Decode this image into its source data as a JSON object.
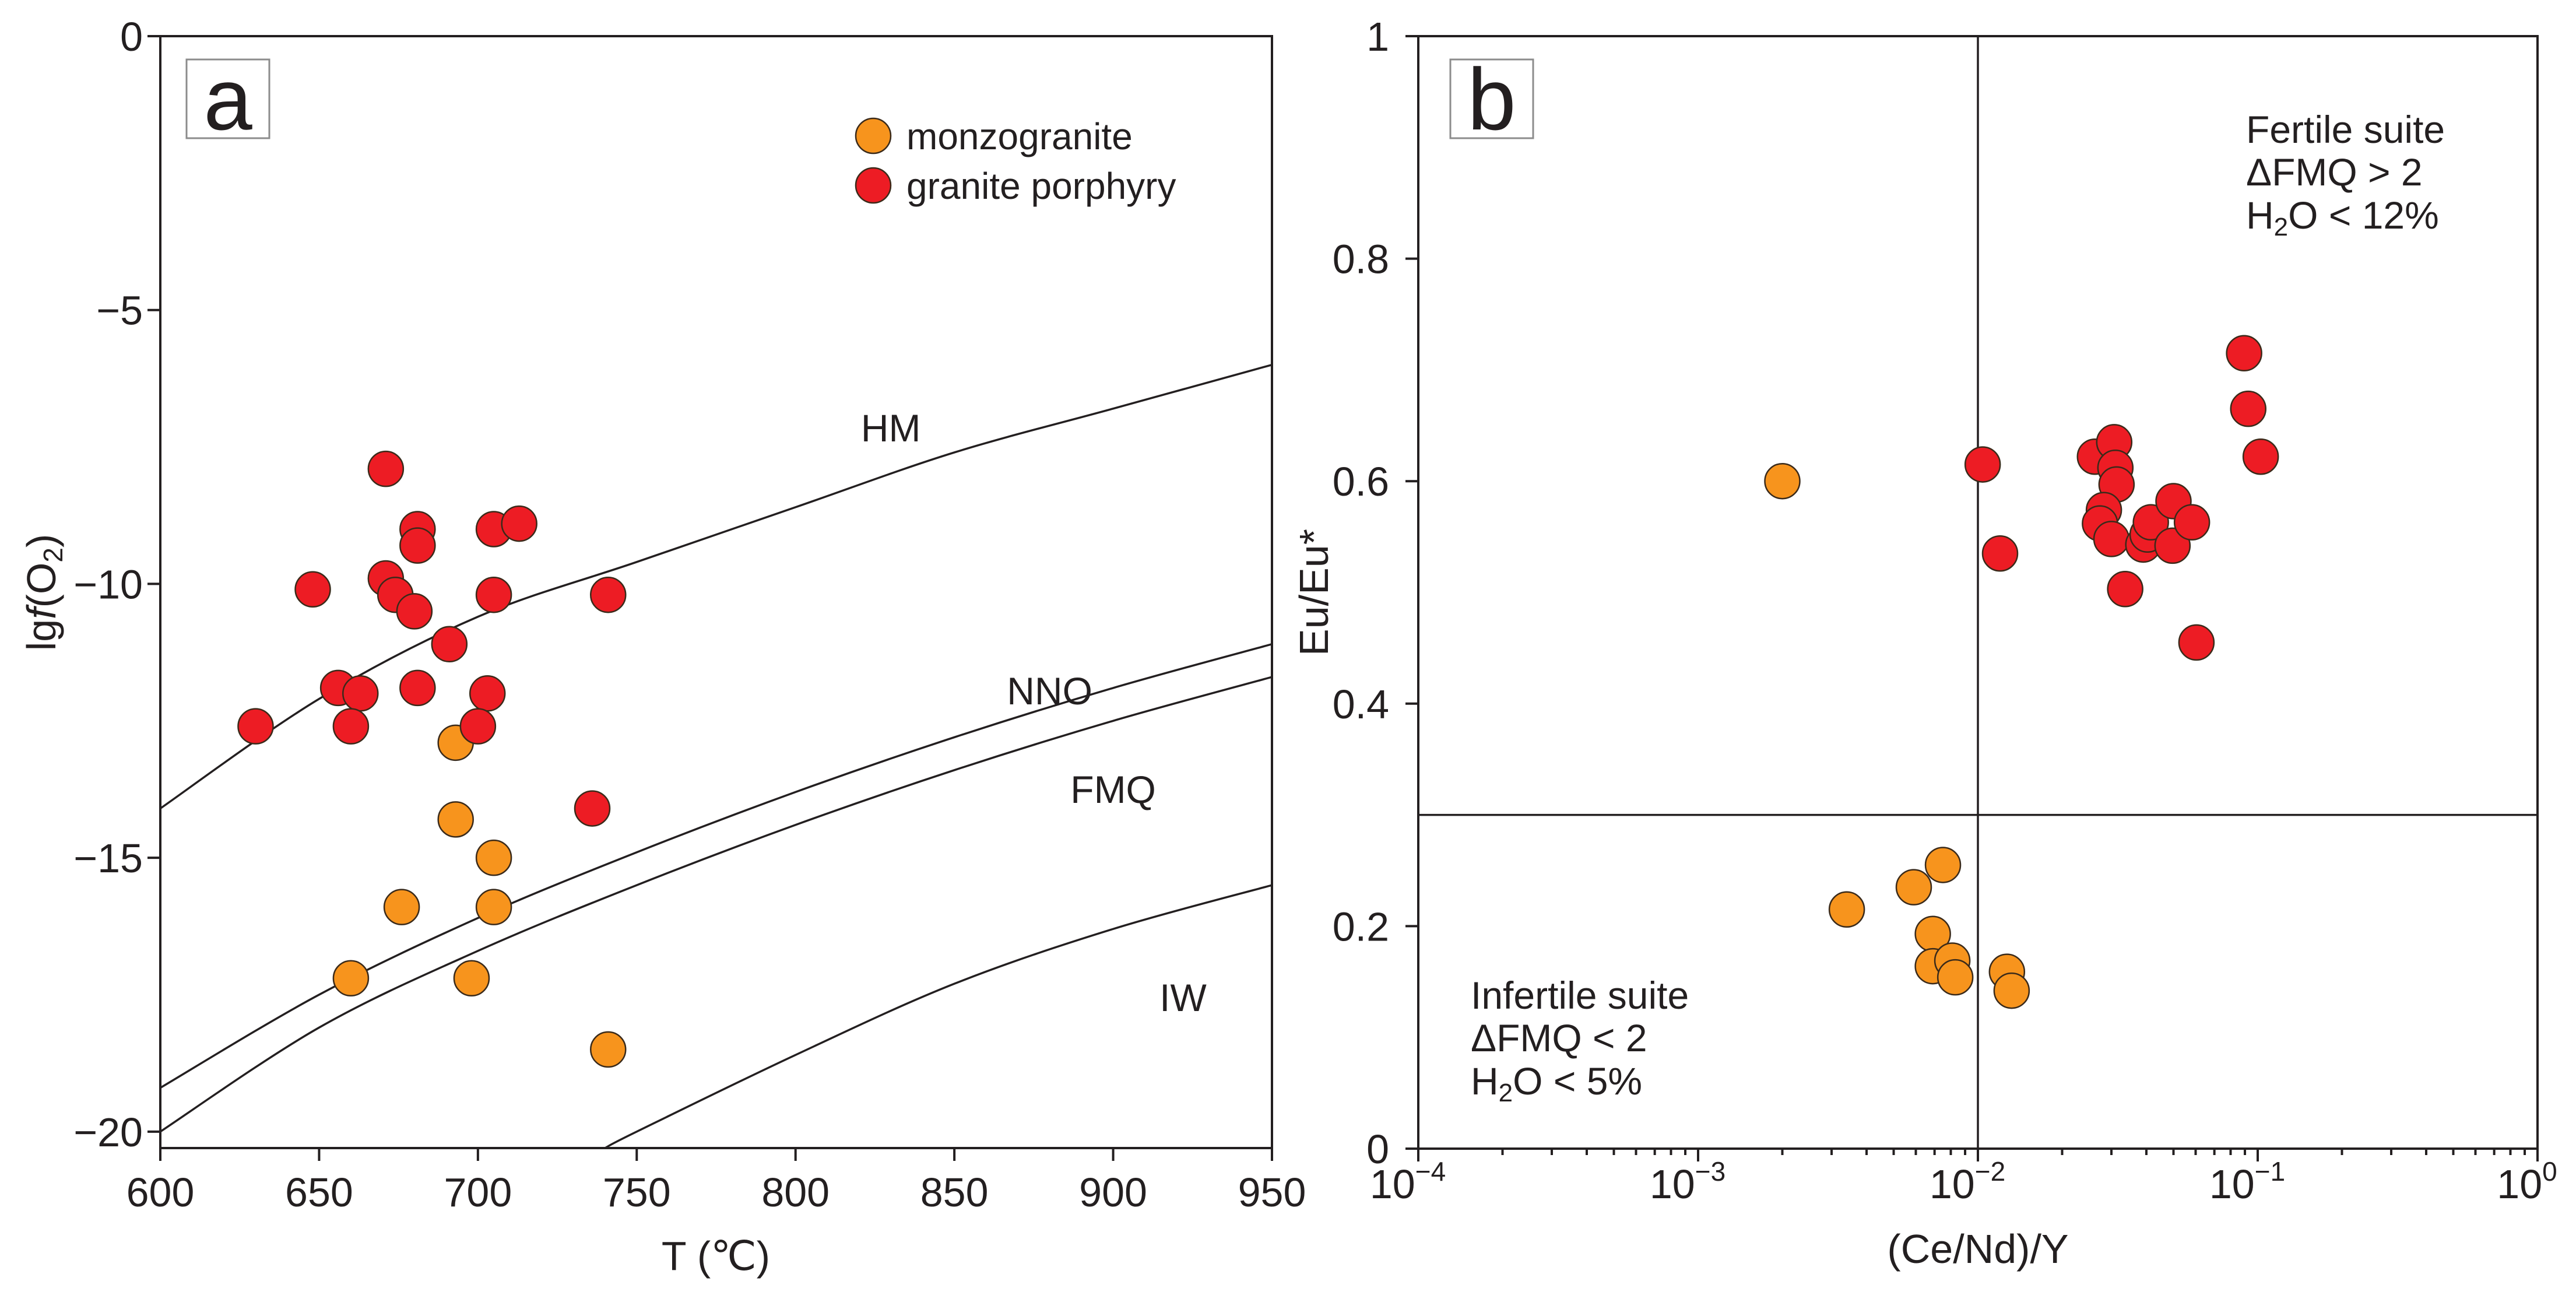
{
  "chart_data": [
    {
      "panel": "a",
      "type": "scatter",
      "xlabel": "T (℃)",
      "ylabel": "lgf(O2)",
      "xlim": [
        600,
        950
      ],
      "ylim": [
        -20.3,
        0
      ],
      "x_ticks": [
        {
          "v": 600,
          "label": "600"
        },
        {
          "v": 650,
          "label": "650"
        },
        {
          "v": 700,
          "label": "700"
        },
        {
          "v": 750,
          "label": "750"
        },
        {
          "v": 800,
          "label": "800"
        },
        {
          "v": 850,
          "label": "850"
        },
        {
          "v": 900,
          "label": "900"
        },
        {
          "v": 950,
          "label": "950"
        }
      ],
      "y_ticks": [
        {
          "v": 0,
          "label": "0"
        },
        {
          "v": -5,
          "label": "−5"
        },
        {
          "v": -10,
          "label": "−10"
        },
        {
          "v": -15,
          "label": "−15"
        },
        {
          "v": -20,
          "label": "−20"
        }
      ],
      "legend": [
        {
          "name": "monzogranite",
          "color": "#f7941d"
        },
        {
          "name": "granite porphyry",
          "color": "#ed1c24"
        }
      ],
      "buffers": [
        {
          "name": "HM",
          "label_at": [
            830,
            -7.4
          ],
          "points": [
            [
              600,
              -14.1
            ],
            [
              650,
              -12.1
            ],
            [
              700,
              -10.6
            ],
            [
              750,
              -9.6
            ],
            [
              800,
              -8.6
            ],
            [
              850,
              -7.6
            ],
            [
              900,
              -6.8
            ],
            [
              950,
              -6.0
            ]
          ]
        },
        {
          "name": "NNO",
          "label_at": [
            880,
            -12.2
          ],
          "points": [
            [
              600,
              -19.2
            ],
            [
              650,
              -17.5
            ],
            [
              700,
              -16.1
            ],
            [
              750,
              -14.9
            ],
            [
              800,
              -13.8
            ],
            [
              850,
              -12.8
            ],
            [
              900,
              -11.9
            ],
            [
              950,
              -11.1
            ]
          ]
        },
        {
          "name": "FMQ",
          "label_at": [
            900,
            -14.0
          ],
          "points": [
            [
              600,
              -20.0
            ],
            [
              650,
              -18.1
            ],
            [
              700,
              -16.7
            ],
            [
              750,
              -15.5
            ],
            [
              800,
              -14.4
            ],
            [
              850,
              -13.4
            ],
            [
              900,
              -12.5
            ],
            [
              950,
              -11.7
            ]
          ]
        },
        {
          "name": "IW",
          "label_at": [
            922,
            -17.8
          ],
          "points": [
            [
              740,
              -20.3
            ],
            [
              750,
              -20.0
            ],
            [
              800,
              -18.6
            ],
            [
              850,
              -17.3
            ],
            [
              900,
              -16.3
            ],
            [
              950,
              -15.5
            ]
          ]
        }
      ],
      "series": [
        {
          "name": "monzogranite",
          "color": "#f7941d",
          "points": [
            [
              693,
              -12.9
            ],
            [
              693,
              -14.3
            ],
            [
              705,
              -15.0
            ],
            [
              676,
              -15.9
            ],
            [
              705,
              -15.9
            ],
            [
              660,
              -17.2
            ],
            [
              698,
              -17.2
            ],
            [
              741,
              -18.5
            ]
          ]
        },
        {
          "name": "granite porphyry",
          "color": "#ed1c24",
          "points": [
            [
              671,
              -7.9
            ],
            [
              681,
              -9.0
            ],
            [
              681,
              -9.3
            ],
            [
              705,
              -9.0
            ],
            [
              713,
              -8.9
            ],
            [
              671,
              -9.9
            ],
            [
              648,
              -10.1
            ],
            [
              674,
              -10.2
            ],
            [
              705,
              -10.2
            ],
            [
              741,
              -10.2
            ],
            [
              680,
              -10.5
            ],
            [
              691,
              -11.1
            ],
            [
              656,
              -11.9
            ],
            [
              663,
              -12.0
            ],
            [
              681,
              -11.9
            ],
            [
              703,
              -12.0
            ],
            [
              630,
              -12.6
            ],
            [
              660,
              -12.6
            ],
            [
              700,
              -12.6
            ],
            [
              736,
              -14.1
            ]
          ]
        }
      ]
    },
    {
      "panel": "b",
      "type": "scatter",
      "xlabel": "(Ce/Nd)/Y",
      "ylabel": "Eu/Eu*",
      "x_scale": "log",
      "xlim": [
        0.0001,
        1
      ],
      "ylim": [
        0,
        1
      ],
      "x_ticks": [
        {
          "v": 0.0001,
          "base": "10",
          "exp": "−4"
        },
        {
          "v": 0.001,
          "base": "10",
          "exp": "−3"
        },
        {
          "v": 0.01,
          "base": "10",
          "exp": "−2"
        },
        {
          "v": 0.1,
          "base": "10",
          "exp": "−1"
        },
        {
          "v": 1,
          "base": "10",
          "exp": "0"
        }
      ],
      "y_ticks": [
        {
          "v": 0,
          "label": "0"
        },
        {
          "v": 0.2,
          "label": "0.2"
        },
        {
          "v": 0.4,
          "label": "0.4"
        },
        {
          "v": 0.6,
          "label": "0.6"
        },
        {
          "v": 0.8,
          "label": "0.8"
        },
        {
          "v": 1,
          "label": "1"
        }
      ],
      "reference_lines": {
        "vertical_x": 0.01,
        "horizontal_y": 0.3
      },
      "annotations": {
        "fertile": [
          "Fertile suite",
          "ΔFMQ > 2",
          "H2O < 12%"
        ],
        "infertile": [
          "Infertile suite",
          "ΔFMQ < 2",
          "H2O < 5%"
        ]
      },
      "series": [
        {
          "name": "monzogranite",
          "color": "#f7941d",
          "points": [
            [
              0.002,
              0.6
            ],
            [
              0.0034,
              0.215
            ],
            [
              0.0059,
              0.235
            ],
            [
              0.0075,
              0.255
            ],
            [
              0.0069,
              0.193
            ],
            [
              0.0069,
              0.164
            ],
            [
              0.0081,
              0.169
            ],
            [
              0.0083,
              0.154
            ],
            [
              0.0127,
              0.159
            ],
            [
              0.0132,
              0.142
            ]
          ]
        },
        {
          "name": "granite porphyry",
          "color": "#ed1c24",
          "points": [
            [
              0.0104,
              0.615
            ],
            [
              0.012,
              0.535
            ],
            [
              0.0262,
              0.622
            ],
            [
              0.0307,
              0.635
            ],
            [
              0.031,
              0.612
            ],
            [
              0.0313,
              0.597
            ],
            [
              0.0282,
              0.574
            ],
            [
              0.0273,
              0.562
            ],
            [
              0.03,
              0.548
            ],
            [
              0.0336,
              0.503
            ],
            [
              0.039,
              0.543
            ],
            [
              0.0404,
              0.552
            ],
            [
              0.0415,
              0.563
            ],
            [
              0.05,
              0.582
            ],
            [
              0.0496,
              0.542
            ],
            [
              0.0582,
              0.563
            ],
            [
              0.0604,
              0.455
            ],
            [
              0.0894,
              0.715
            ],
            [
              0.0925,
              0.665
            ],
            [
              0.1025,
              0.622
            ]
          ]
        }
      ]
    }
  ]
}
